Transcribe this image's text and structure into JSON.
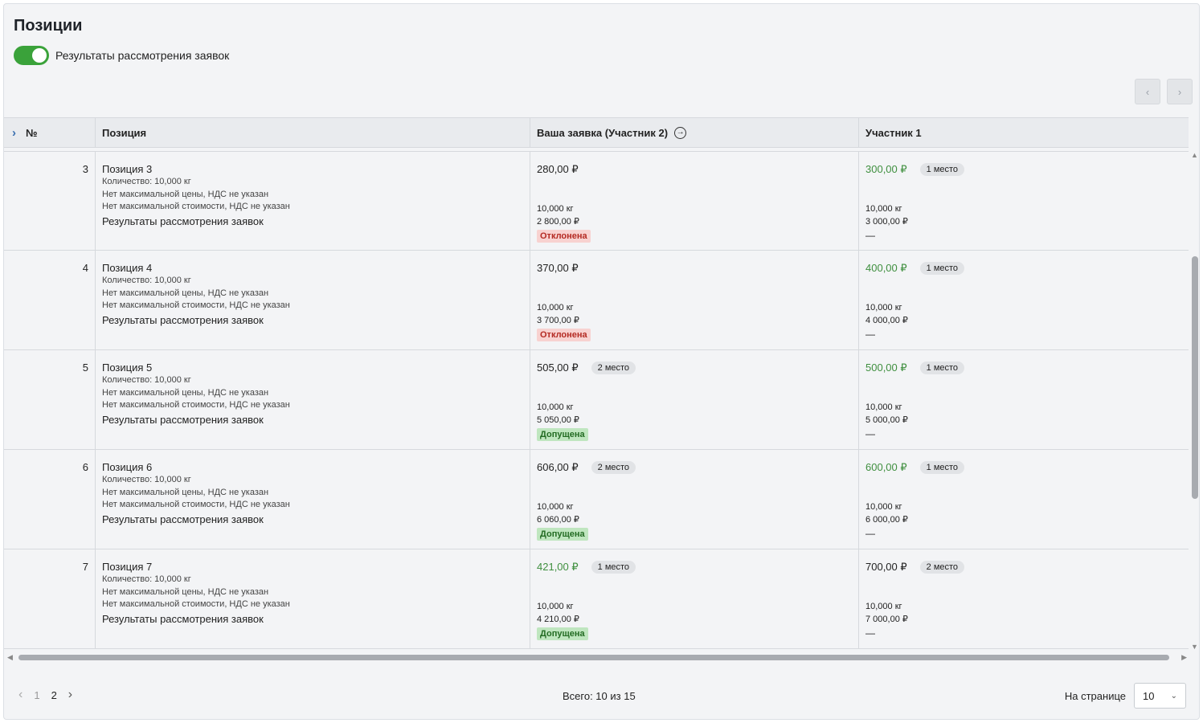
{
  "header": {
    "title": "Позиции",
    "toggle_label": "Результаты рассмотрения заявок"
  },
  "nav": {
    "prev_icon": "‹",
    "next_icon": "›"
  },
  "table": {
    "columns": [
      "№",
      "Позиция",
      "Ваша заявка (Участник 2)",
      "Участник 1"
    ],
    "expand_icon": "›",
    "go_icon": "→",
    "rows": [
      {
        "num": "3",
        "name": "Позиция 3",
        "qty": "Количество: 10,000 кг",
        "no_max_price": "Нет максимальной цены, НДС не указан",
        "no_max_cost": "Нет максимальной стоимости, НДС не указан",
        "results": "Результаты рассмотрения заявок",
        "mine": {
          "price": "280,00 ₽",
          "place": "",
          "qty": "10,000 кг",
          "total": "2 800,00 ₽",
          "status": "Отклонена"
        },
        "p1": {
          "price": "300,00 ₽",
          "place": "1 место",
          "qty": "10,000 кг",
          "total": "3 000,00 ₽",
          "status": "—"
        }
      },
      {
        "num": "4",
        "name": "Позиция 4",
        "qty": "Количество: 10,000 кг",
        "no_max_price": "Нет максимальной цены, НДС не указан",
        "no_max_cost": "Нет максимальной стоимости, НДС не указан",
        "results": "Результаты рассмотрения заявок",
        "mine": {
          "price": "370,00 ₽",
          "place": "",
          "qty": "10,000 кг",
          "total": "3 700,00 ₽",
          "status": "Отклонена"
        },
        "p1": {
          "price": "400,00 ₽",
          "place": "1 место",
          "qty": "10,000 кг",
          "total": "4 000,00 ₽",
          "status": "—"
        }
      },
      {
        "num": "5",
        "name": "Позиция 5",
        "qty": "Количество: 10,000 кг",
        "no_max_price": "Нет максимальной цены, НДС не указан",
        "no_max_cost": "Нет максимальной стоимости, НДС не указан",
        "results": "Результаты рассмотрения заявок",
        "mine": {
          "price": "505,00 ₽",
          "place": "2 место",
          "qty": "10,000 кг",
          "total": "5 050,00 ₽",
          "status": "Допущена"
        },
        "p1": {
          "price": "500,00 ₽",
          "place": "1 место",
          "qty": "10,000 кг",
          "total": "5 000,00 ₽",
          "status": "—"
        }
      },
      {
        "num": "6",
        "name": "Позиция 6",
        "qty": "Количество: 10,000 кг",
        "no_max_price": "Нет максимальной цены, НДС не указан",
        "no_max_cost": "Нет максимальной стоимости, НДС не указан",
        "results": "Результаты рассмотрения заявок",
        "mine": {
          "price": "606,00 ₽",
          "place": "2 место",
          "qty": "10,000 кг",
          "total": "6 060,00 ₽",
          "status": "Допущена"
        },
        "p1": {
          "price": "600,00 ₽",
          "place": "1 место",
          "qty": "10,000 кг",
          "total": "6 000,00 ₽",
          "status": "—"
        }
      },
      {
        "num": "7",
        "name": "Позиция 7",
        "qty": "Количество: 10,000 кг",
        "no_max_price": "Нет максимальной цены, НДС не указан",
        "no_max_cost": "Нет максимальной стоимости, НДС не указан",
        "results": "Результаты рассмотрения заявок",
        "mine": {
          "price": "421,00 ₽",
          "place": "1 место",
          "qty": "10,000 кг",
          "total": "4 210,00 ₽",
          "status": "Допущена"
        },
        "p1": {
          "price": "700,00 ₽",
          "place": "2 место",
          "qty": "10,000 кг",
          "total": "7 000,00 ₽",
          "status": "—"
        }
      }
    ]
  },
  "footer": {
    "pages": [
      "1",
      "2"
    ],
    "current_page": "2",
    "total": "Всего: 10 из 15",
    "per_page_label": "На странице",
    "per_page_value": "10"
  },
  "colors": {
    "accent_green": "#3aa23a",
    "winner_price": "#3f8f3f",
    "rejected_bg": "#f8d2d0",
    "admitted_bg": "#bfe6bf"
  }
}
